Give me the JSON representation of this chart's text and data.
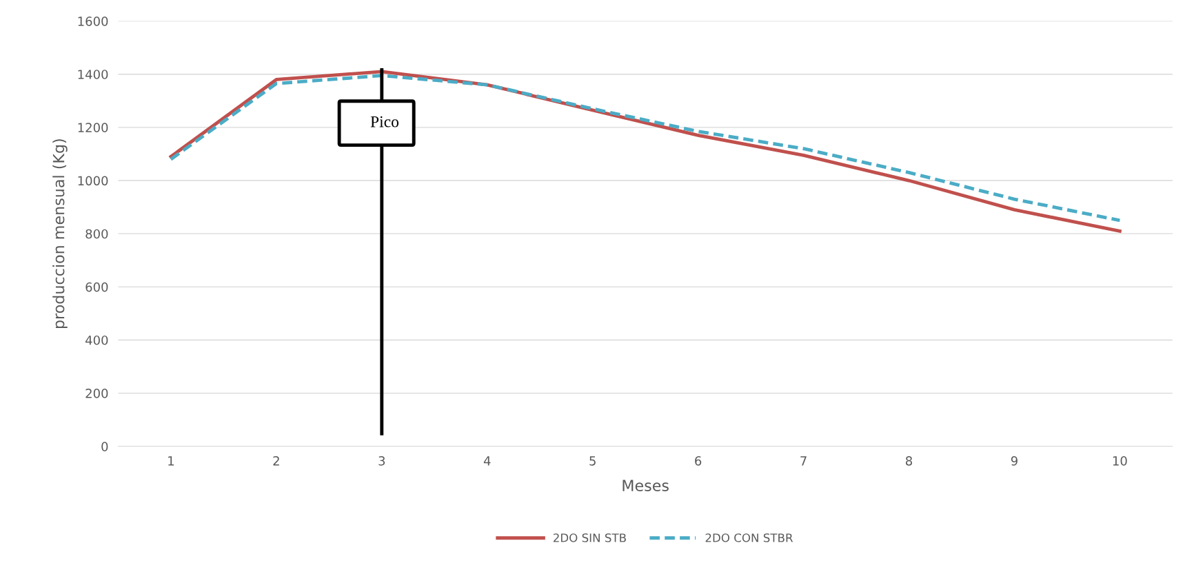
{
  "chart_data": {
    "type": "line",
    "xlabel": "Meses",
    "ylabel": "produccion mensual (Kg)",
    "categories": [
      "1",
      "2",
      "3",
      "4",
      "5",
      "6",
      "7",
      "8",
      "9",
      "10"
    ],
    "series": [
      {
        "name": "2DO SIN STB",
        "color": "#c0504d",
        "line_style": "solid",
        "values": [
          1090,
          1380,
          1410,
          1360,
          1265,
          1170,
          1095,
          1000,
          890,
          810
        ]
      },
      {
        "name": "2DO CON STBR",
        "color": "#4bacc6",
        "line_style": "dashed",
        "values": [
          1080,
          1365,
          1395,
          1360,
          1270,
          1185,
          1120,
          1030,
          930,
          850
        ]
      }
    ],
    "ylim": [
      0,
      1600
    ],
    "yticks": [
      0,
      200,
      400,
      600,
      800,
      1000,
      1200,
      1400,
      1600
    ],
    "grid": "y",
    "legend": "bottom",
    "marker": "none",
    "ref_lines": [
      {
        "axis": "x",
        "value": "3",
        "label": "Pico",
        "color": "#000000",
        "line_style": "solid"
      }
    ]
  }
}
